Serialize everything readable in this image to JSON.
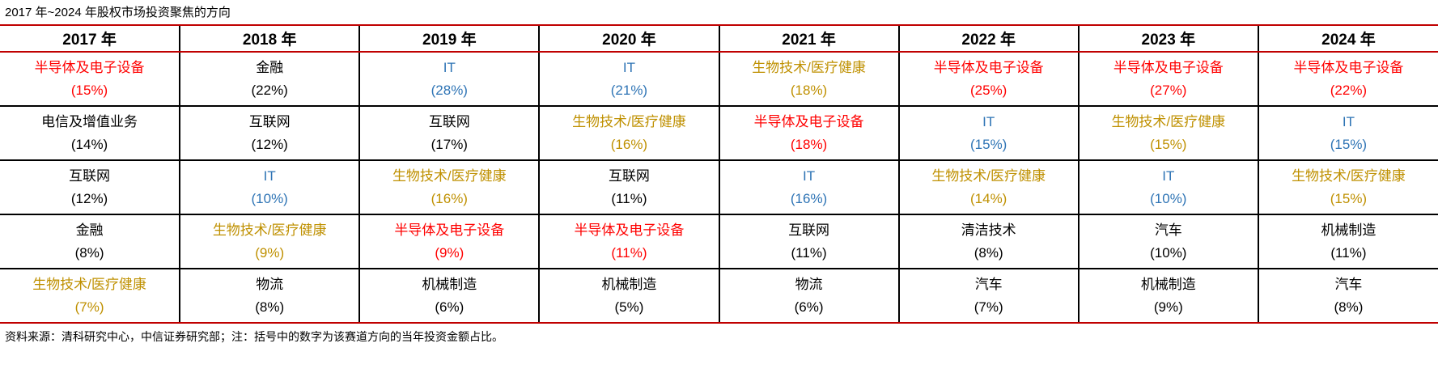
{
  "title": "2017 年~2024 年股权市场投资聚焦的方向",
  "source_note": "资料来源：清科研究中心，中信证券研究部；注：括号中的数字为该赛道方向的当年投资金额占比。",
  "colors": {
    "red": "#FF0000",
    "gold": "#BF9000",
    "blue": "#2E74B5",
    "black": "#000000",
    "rule_red": "#C00000"
  },
  "chart_data": {
    "type": "table",
    "title": "2017 年~2024 年股权市场投资聚焦的方向",
    "note": "括号中的数字为该赛道方向的当年投资金额占比",
    "columns": [
      {
        "year": "2017 年",
        "cells": [
          {
            "sector": "半导体及电子设备",
            "share": "(15%)",
            "color": "red"
          },
          {
            "sector": "电信及增值业务",
            "share": "(14%)",
            "color": "black"
          },
          {
            "sector": "互联网",
            "share": "(12%)",
            "color": "black"
          },
          {
            "sector": "金融",
            "share": "(8%)",
            "color": "black"
          },
          {
            "sector": "生物技术/医疗健康",
            "share": "(7%)",
            "color": "gold"
          }
        ]
      },
      {
        "year": "2018 年",
        "cells": [
          {
            "sector": "金融",
            "share": "(22%)",
            "color": "black"
          },
          {
            "sector": "互联网",
            "share": "(12%)",
            "color": "black"
          },
          {
            "sector": "IT",
            "share": "(10%)",
            "color": "blue"
          },
          {
            "sector": "生物技术/医疗健康",
            "share": "(9%)",
            "color": "gold"
          },
          {
            "sector": "物流",
            "share": "(8%)",
            "color": "black"
          }
        ]
      },
      {
        "year": "2019 年",
        "cells": [
          {
            "sector": "IT",
            "share": "(28%)",
            "color": "blue"
          },
          {
            "sector": "互联网",
            "share": "(17%)",
            "color": "black"
          },
          {
            "sector": "生物技术/医疗健康",
            "share": "(16%)",
            "color": "gold"
          },
          {
            "sector": "半导体及电子设备",
            "share": "(9%)",
            "color": "red"
          },
          {
            "sector": "机械制造",
            "share": "(6%)",
            "color": "black"
          }
        ]
      },
      {
        "year": "2020 年",
        "cells": [
          {
            "sector": "IT",
            "share": "(21%)",
            "color": "blue"
          },
          {
            "sector": "生物技术/医疗健康",
            "share": "(16%)",
            "color": "gold"
          },
          {
            "sector": "互联网",
            "share": "(11%)",
            "color": "black"
          },
          {
            "sector": "半导体及电子设备",
            "share": "(11%)",
            "color": "red"
          },
          {
            "sector": "机械制造",
            "share": "(5%)",
            "color": "black"
          }
        ]
      },
      {
        "year": "2021 年",
        "cells": [
          {
            "sector": "生物技术/医疗健康",
            "share": "(18%)",
            "color": "gold"
          },
          {
            "sector": "半导体及电子设备",
            "share": "(18%)",
            "color": "red"
          },
          {
            "sector": "IT",
            "share": "(16%)",
            "color": "blue"
          },
          {
            "sector": "互联网",
            "share": "(11%)",
            "color": "black"
          },
          {
            "sector": "物流",
            "share": "(6%)",
            "color": "black"
          }
        ]
      },
      {
        "year": "2022 年",
        "cells": [
          {
            "sector": "半导体及电子设备",
            "share": "(25%)",
            "color": "red"
          },
          {
            "sector": "IT",
            "share": "(15%)",
            "color": "blue"
          },
          {
            "sector": "生物技术/医疗健康",
            "share": "(14%)",
            "color": "gold"
          },
          {
            "sector": "清洁技术",
            "share": "(8%)",
            "color": "black"
          },
          {
            "sector": "汽车",
            "share": "(7%)",
            "color": "black"
          }
        ]
      },
      {
        "year": "2023 年",
        "cells": [
          {
            "sector": "半导体及电子设备",
            "share": "(27%)",
            "color": "red"
          },
          {
            "sector": "生物技术/医疗健康",
            "share": "(15%)",
            "color": "gold"
          },
          {
            "sector": "IT",
            "share": "(10%)",
            "color": "blue"
          },
          {
            "sector": "汽车",
            "share": "(10%)",
            "color": "black"
          },
          {
            "sector": "机械制造",
            "share": "(9%)",
            "color": "black"
          }
        ]
      },
      {
        "year": "2024 年",
        "cells": [
          {
            "sector": "半导体及电子设备",
            "share": "(22%)",
            "color": "red"
          },
          {
            "sector": "IT",
            "share": "(15%)",
            "color": "blue"
          },
          {
            "sector": "生物技术/医疗健康",
            "share": "(15%)",
            "color": "gold"
          },
          {
            "sector": "机械制造",
            "share": "(11%)",
            "color": "black"
          },
          {
            "sector": "汽车",
            "share": "(8%)",
            "color": "black"
          }
        ]
      }
    ]
  }
}
